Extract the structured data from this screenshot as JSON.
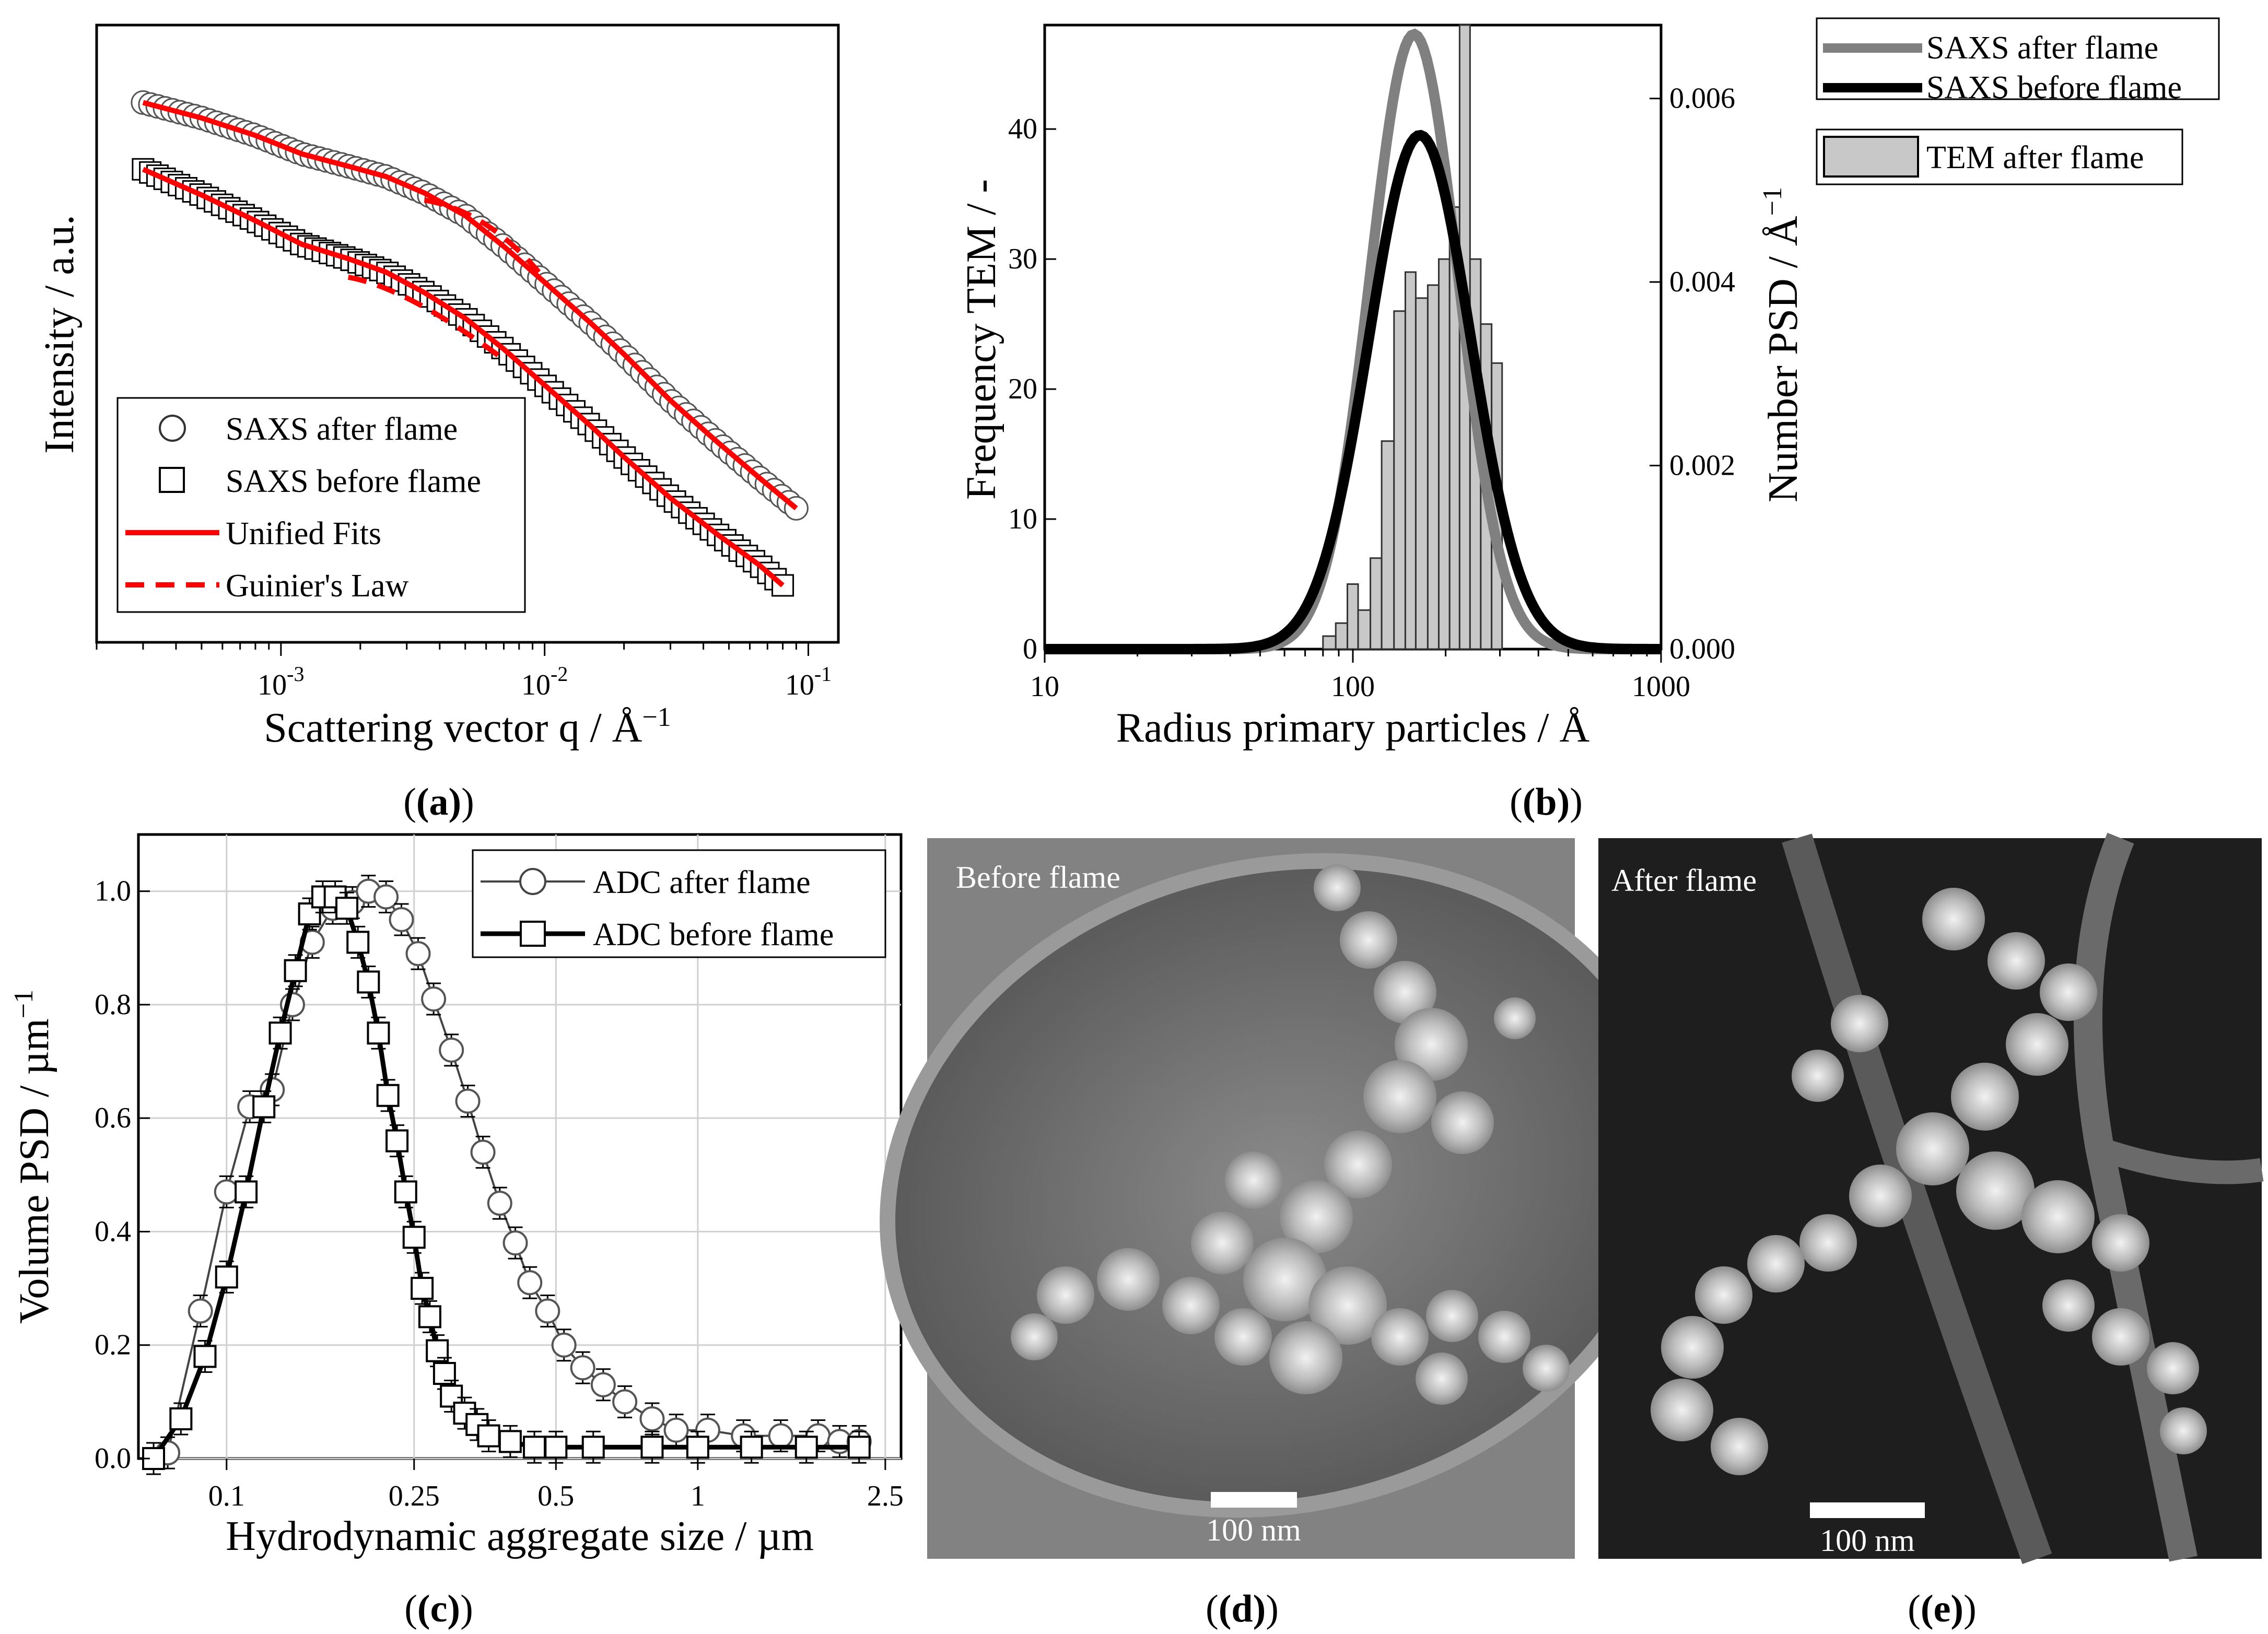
{
  "chart_data": [
    {
      "panel": "(a)",
      "type": "scatter",
      "xlabel": "Scattering vector q / Å",
      "xlabel_sup": "−1",
      "ylabel": "Intensity / a.u.",
      "xscale": "log",
      "xlim": [
        0.0002,
        0.13
      ],
      "xticks": [
        {
          "base": "10",
          "exp": "-3"
        },
        {
          "base": "10",
          "exp": "-2"
        },
        {
          "base": "10",
          "exp": "-1"
        }
      ],
      "legend": [
        "SAXS after flame",
        "SAXS before flame",
        "Unified Fits",
        "Guinier's Law"
      ],
      "legend_position": "bottom-left",
      "series": [
        {
          "name": "SAXS after flame",
          "marker": "circle",
          "q": [
            0.0003,
            0.0005,
            0.0008,
            0.0012,
            0.0018,
            0.0025,
            0.0035,
            0.005,
            0.007,
            0.01,
            0.015,
            0.02,
            0.03,
            0.045,
            0.065,
            0.09
          ],
          "log_intensity": [
            6.0,
            5.85,
            5.68,
            5.5,
            5.38,
            5.28,
            5.12,
            4.9,
            4.6,
            4.25,
            3.85,
            3.55,
            3.1,
            2.7,
            2.35,
            2.05
          ]
        },
        {
          "name": "SAXS before flame",
          "marker": "square",
          "q": [
            0.0003,
            0.0005,
            0.0008,
            0.0012,
            0.0018,
            0.0025,
            0.0035,
            0.005,
            0.007,
            0.01,
            0.015,
            0.02,
            0.03,
            0.045,
            0.065,
            0.08
          ],
          "log_intensity": [
            5.35,
            5.1,
            4.85,
            4.62,
            4.48,
            4.35,
            4.15,
            3.9,
            3.6,
            3.25,
            2.85,
            2.55,
            2.15,
            1.8,
            1.5,
            1.3
          ]
        }
      ]
    },
    {
      "panel": "(b)",
      "type": "bar+line",
      "xlabel": "Radius primary particles / Å",
      "ylabel_left": "Frequency TEM / -",
      "ylabel_right": "Number PSD / Å",
      "ylabel_right_sup": "−1",
      "xscale": "log",
      "xlim": [
        10,
        1000
      ],
      "ylim_left": [
        0,
        48
      ],
      "ylim_right": [
        0,
        0.0068
      ],
      "xticks": [
        "10",
        "100",
        "1000"
      ],
      "yticks_left": [
        "0",
        "10",
        "20",
        "30",
        "40"
      ],
      "yticks_right": [
        "0.000",
        "0.002",
        "0.004",
        "0.006"
      ],
      "legend": [
        "SAXS after flame",
        "SAXS before flame",
        "TEM after flame"
      ],
      "legend_position": "outside-right",
      "histogram": {
        "name": "TEM after flame",
        "bin_edges": [
          80,
          88,
          96,
          104,
          114,
          124,
          136,
          148,
          160,
          175,
          190,
          206,
          222,
          240,
          260,
          282,
          305
        ],
        "counts": [
          1,
          2,
          5,
          3,
          7,
          16,
          26,
          29,
          27,
          28,
          30,
          34,
          48,
          30,
          25,
          22
        ]
      },
      "series": [
        {
          "name": "SAXS after flame",
          "color": "#808080",
          "mode_radius": 158,
          "peak": 0.0067,
          "sigma_ln": 0.33
        },
        {
          "name": "SAXS before flame",
          "color": "#000000",
          "mode_radius": 165,
          "peak": 0.0056,
          "sigma_ln": 0.38
        }
      ]
    },
    {
      "panel": "(c)",
      "type": "line",
      "xlabel": "Hydrodynamic aggregate size / µm",
      "ylabel": "Volume PSD / µm",
      "ylabel_sup": "−1",
      "xscale": "log",
      "xlim": [
        0.065,
        2.7
      ],
      "ylim": [
        0,
        1.1
      ],
      "xticks": [
        "0.1",
        "0.25",
        "0.5",
        "1",
        "2.5"
      ],
      "yticks": [
        "0.0",
        "0.2",
        "0.4",
        "0.6",
        "0.8",
        "1.0"
      ],
      "legend": [
        "ADC after flame",
        "ADC before flame"
      ],
      "legend_position": "top-right",
      "series": [
        {
          "name": "ADC after flame",
          "marker": "circle",
          "x": [
            0.075,
            0.088,
            0.1,
            0.112,
            0.125,
            0.138,
            0.152,
            0.168,
            0.185,
            0.2,
            0.218,
            0.235,
            0.255,
            0.275,
            0.3,
            0.325,
            0.35,
            0.38,
            0.41,
            0.44,
            0.48,
            0.52,
            0.57,
            0.63,
            0.7,
            0.8,
            0.9,
            1.05,
            1.25,
            1.5,
            1.8,
            2.0,
            2.2
          ],
          "y": [
            0.01,
            0.26,
            0.47,
            0.62,
            0.65,
            0.8,
            0.91,
            0.97,
            0.98,
            1.0,
            0.99,
            0.95,
            0.89,
            0.81,
            0.72,
            0.63,
            0.54,
            0.45,
            0.38,
            0.31,
            0.26,
            0.2,
            0.16,
            0.13,
            0.1,
            0.07,
            0.05,
            0.05,
            0.04,
            0.04,
            0.04,
            0.03,
            0.03
          ]
        },
        {
          "name": "ADC before flame",
          "marker": "square",
          "x": [
            0.07,
            0.08,
            0.09,
            0.1,
            0.11,
            0.12,
            0.13,
            0.14,
            0.15,
            0.16,
            0.17,
            0.18,
            0.19,
            0.2,
            0.21,
            0.22,
            0.23,
            0.24,
            0.25,
            0.26,
            0.27,
            0.28,
            0.29,
            0.3,
            0.32,
            0.34,
            0.36,
            0.4,
            0.45,
            0.5,
            0.6,
            0.8,
            1.0,
            1.3,
            1.7,
            2.2
          ],
          "y": [
            0.0,
            0.07,
            0.18,
            0.32,
            0.47,
            0.62,
            0.75,
            0.86,
            0.96,
            0.99,
            0.99,
            0.97,
            0.91,
            0.84,
            0.75,
            0.64,
            0.56,
            0.47,
            0.39,
            0.3,
            0.25,
            0.19,
            0.15,
            0.11,
            0.08,
            0.06,
            0.04,
            0.03,
            0.02,
            0.02,
            0.02,
            0.02,
            0.02,
            0.02,
            0.02,
            0.02
          ]
        }
      ]
    }
  ],
  "panels": {
    "a": "(a)",
    "b": "(b)",
    "c": "(c)",
    "d": "(d)",
    "e": "(e)"
  },
  "tem": {
    "d_caption": "Before flame",
    "e_caption": "After flame",
    "scale_label": "100 nm"
  }
}
